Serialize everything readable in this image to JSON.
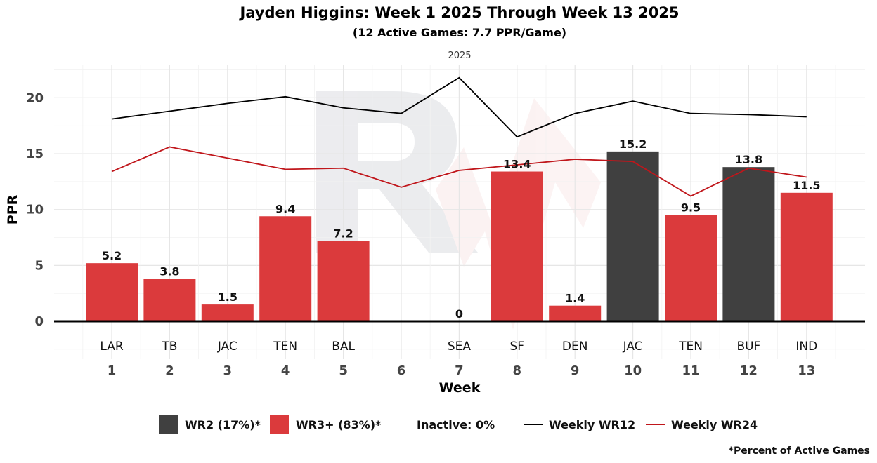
{
  "chart_data": {
    "type": "bar",
    "title": "Jayden Higgins: Week 1 2025 Through Week 13 2025",
    "subtitle": "(12 Active Games: 7.7 PPR/Game)",
    "facet_label": "2025",
    "xlabel": "Week",
    "ylabel": "PPR",
    "ylim": [
      -3.5,
      23
    ],
    "yticks": [
      0,
      5,
      10,
      15,
      20
    ],
    "weeks": [
      1,
      2,
      3,
      4,
      5,
      6,
      7,
      8,
      9,
      10,
      11,
      12,
      13
    ],
    "opponents": [
      "LAR",
      "TB",
      "JAC",
      "TEN",
      "BAL",
      "",
      "SEA",
      "SF",
      "DEN",
      "JAC",
      "TEN",
      "BUF",
      "IND"
    ],
    "bars": [
      {
        "week": 1,
        "value": 5.2,
        "label": "5.2",
        "category": "WR3+"
      },
      {
        "week": 2,
        "value": 3.8,
        "label": "3.8",
        "category": "WR3+"
      },
      {
        "week": 3,
        "value": 1.5,
        "label": "1.5",
        "category": "WR3+"
      },
      {
        "week": 4,
        "value": 9.4,
        "label": "9.4",
        "category": "WR3+"
      },
      {
        "week": 5,
        "value": 7.2,
        "label": "7.2",
        "category": "WR3+"
      },
      {
        "week": 7,
        "value": 0,
        "label": "0",
        "category": "WR3+"
      },
      {
        "week": 8,
        "value": 13.4,
        "label": "13.4",
        "category": "WR3+"
      },
      {
        "week": 9,
        "value": 1.4,
        "label": "1.4",
        "category": "WR3+"
      },
      {
        "week": 10,
        "value": 15.2,
        "label": "15.2",
        "category": "WR2"
      },
      {
        "week": 11,
        "value": 9.5,
        "label": "9.5",
        "category": "WR3+"
      },
      {
        "week": 12,
        "value": 13.8,
        "label": "13.8",
        "category": "WR2"
      },
      {
        "week": 13,
        "value": 11.5,
        "label": "11.5",
        "category": "WR3+"
      }
    ],
    "series": [
      {
        "name": "Weekly WR12",
        "color": "#000000",
        "weeks": [
          1,
          2,
          3,
          4,
          5,
          6,
          7,
          8,
          9,
          10,
          11,
          12,
          13
        ],
        "values": [
          18.1,
          18.8,
          19.5,
          20.1,
          19.1,
          18.6,
          21.8,
          16.5,
          18.6,
          19.7,
          18.6,
          18.5,
          18.3
        ]
      },
      {
        "name": "Weekly WR24",
        "color": "#c0161b",
        "weeks": [
          1,
          2,
          3,
          4,
          5,
          6,
          7,
          8,
          9,
          10,
          11,
          12,
          13
        ],
        "values": [
          13.4,
          15.6,
          14.6,
          13.6,
          13.7,
          12.0,
          13.5,
          14.0,
          14.5,
          14.3,
          11.2,
          13.7,
          12.9
        ]
      }
    ],
    "colors": {
      "WR2": "#404040",
      "WR3+": "#db3a3c"
    },
    "legend": {
      "wr2": "WR2 (17%)*",
      "wr3": "WR3+ (83%)*",
      "inactive": "Inactive: 0%",
      "wr12": "Weekly WR12",
      "wr24": "Weekly WR24"
    },
    "caption": "*Percent of Active Games"
  }
}
